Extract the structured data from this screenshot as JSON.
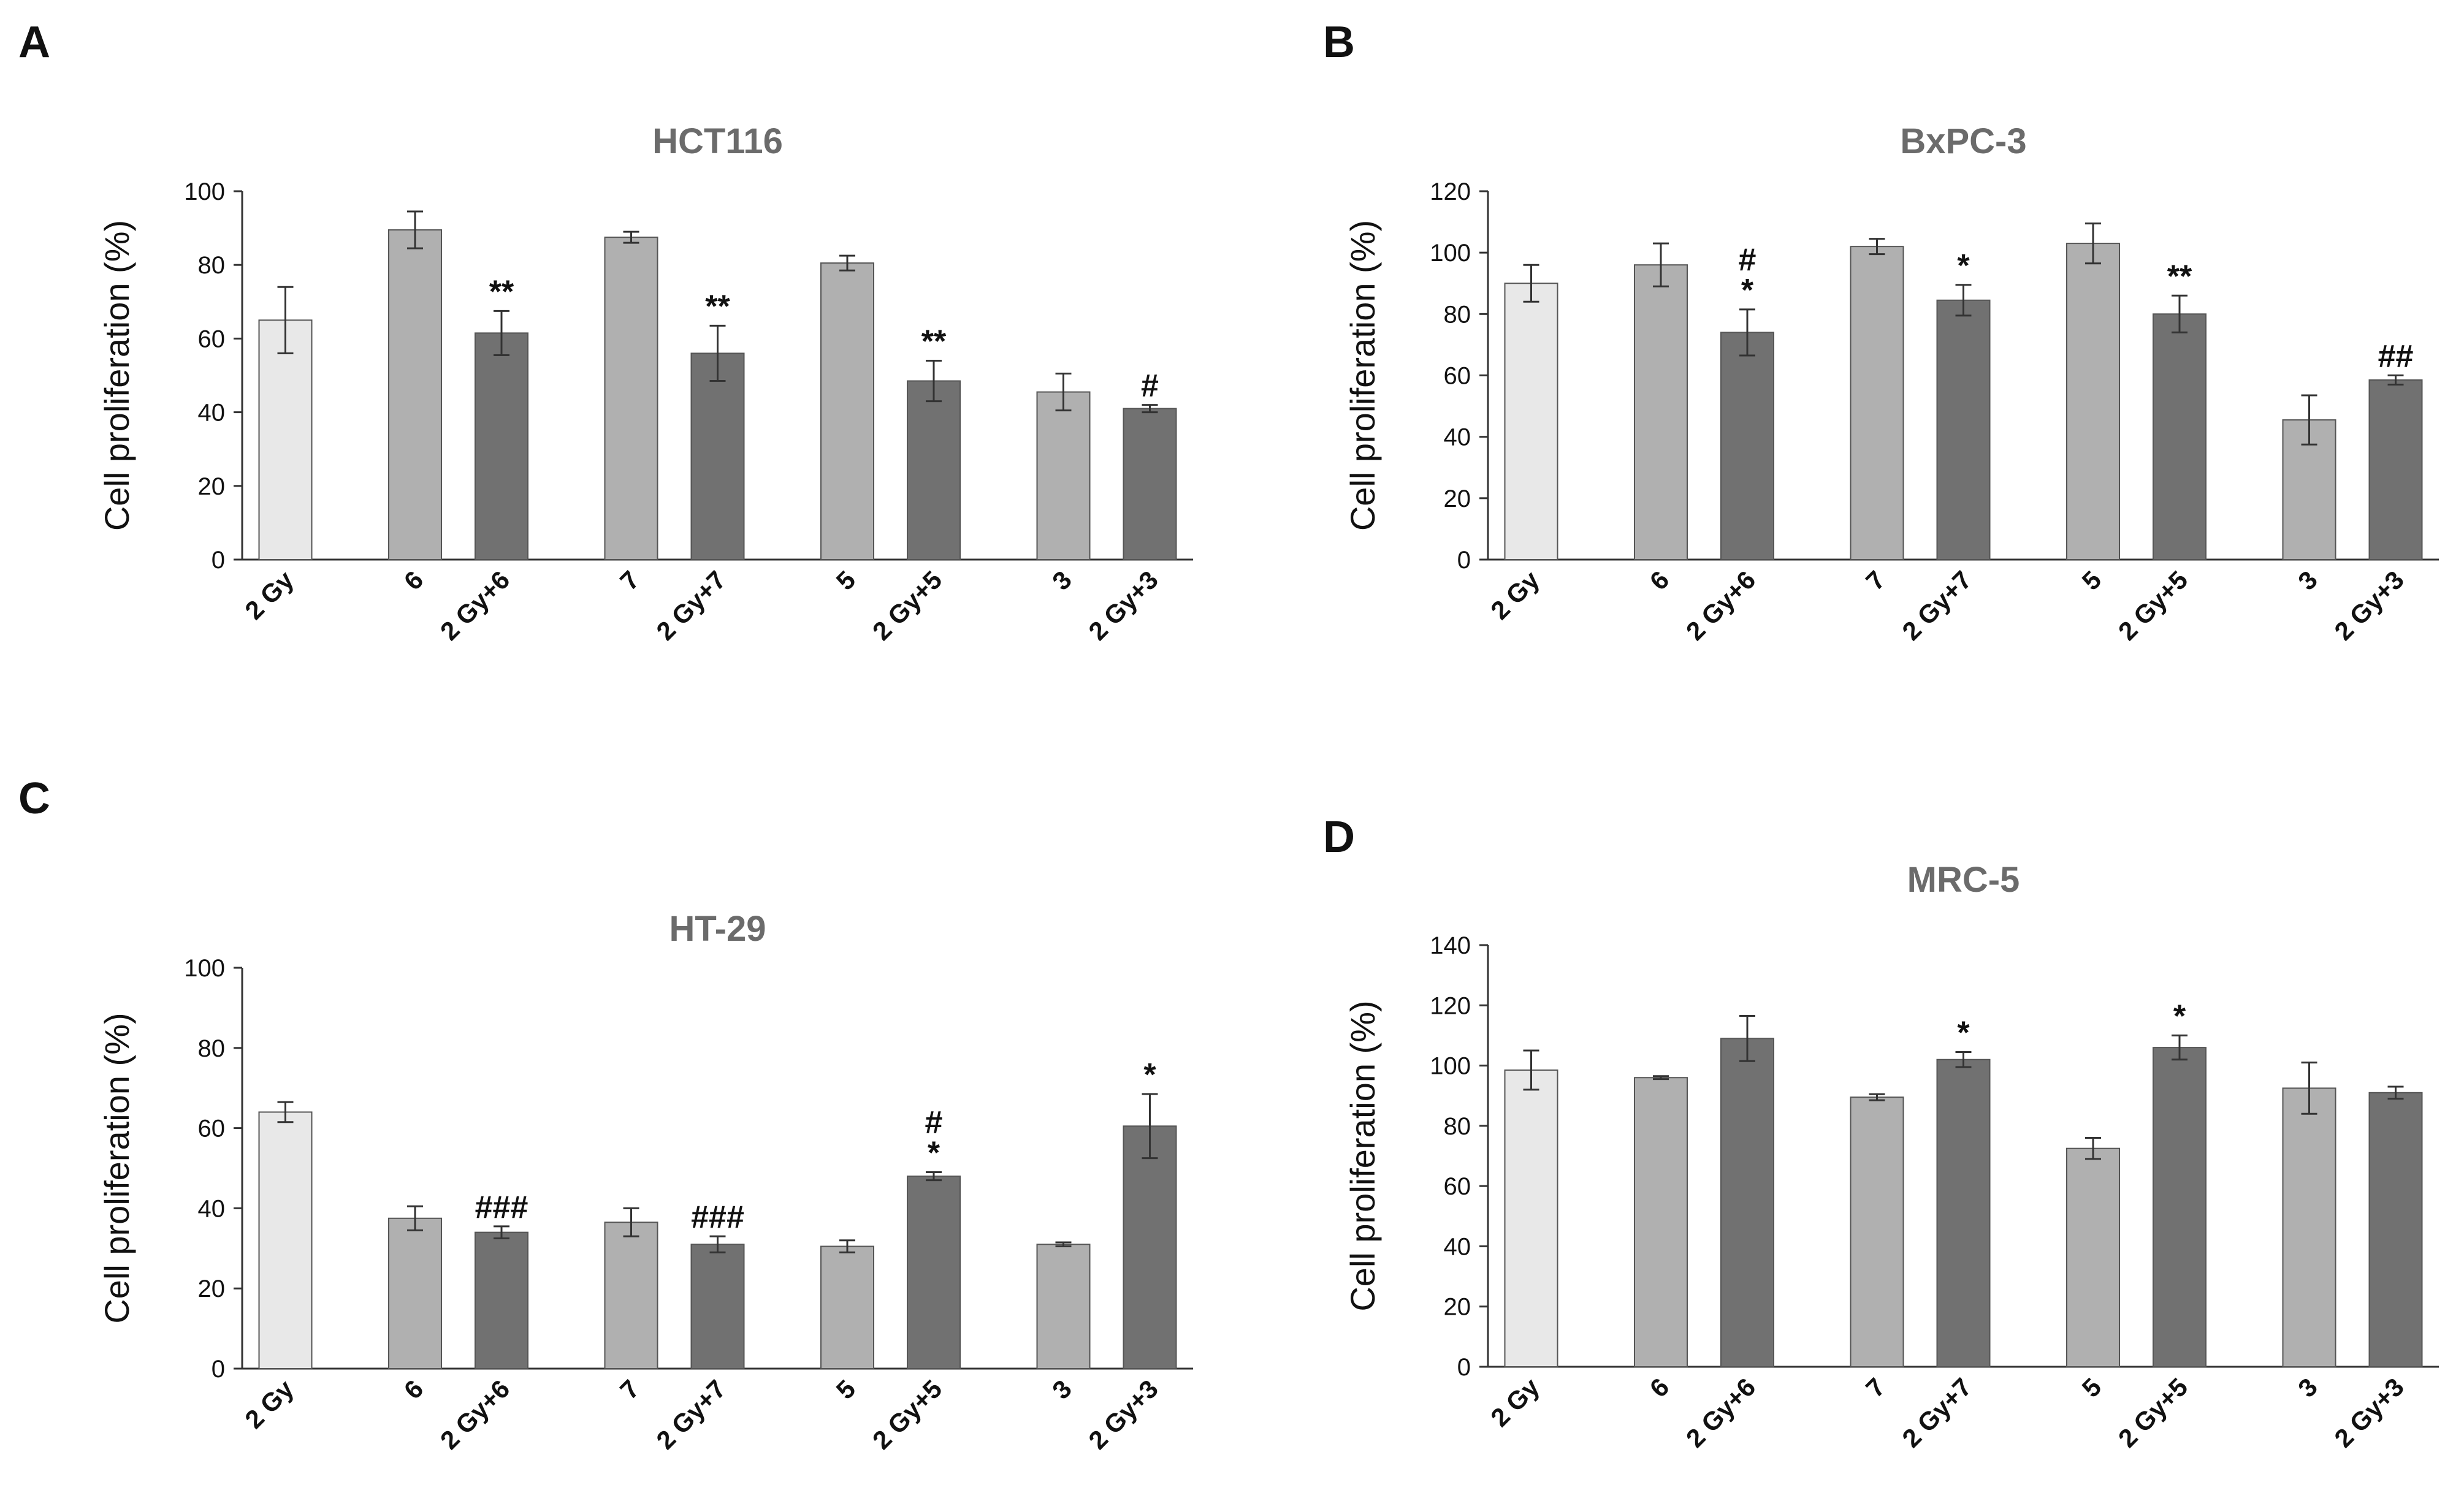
{
  "figure": {
    "panel_letters": [
      "A",
      "B",
      "C",
      "D"
    ]
  },
  "colors": {
    "control": "#e8e8e8",
    "compound": "#b0b0b0",
    "combination": "#717171",
    "bar_stroke": "#555555",
    "axis": "#333333",
    "title": "#6b6b6b",
    "text": "#111111"
  },
  "chart_data": [
    {
      "panel": "A",
      "type": "bar",
      "title": "HCT116",
      "ylabel": "Cell proliferation (%)",
      "xlabel": "",
      "ylim": [
        0,
        100
      ],
      "yticks": [
        0,
        20,
        40,
        60,
        80,
        100
      ],
      "categories": [
        "2 Gy",
        "6",
        "2 Gy+6",
        "7",
        "2 Gy+7",
        "5",
        "2 Gy+5",
        "3",
        "2 Gy+3"
      ],
      "groups": [
        "control",
        "compound",
        "combination",
        "compound",
        "combination",
        "compound",
        "combination",
        "compound",
        "combination"
      ],
      "values": [
        65,
        89.5,
        61.5,
        87.5,
        56,
        80.5,
        48.5,
        45.5,
        41
      ],
      "errors": [
        9,
        5,
        6,
        1.5,
        7.5,
        2,
        5.5,
        5,
        1
      ],
      "annotations": [
        "",
        "",
        "**",
        "",
        "**",
        "",
        "**",
        "",
        "#"
      ]
    },
    {
      "panel": "B",
      "type": "bar",
      "title": "BxPC-3",
      "ylabel": "Cell proliferation (%)",
      "xlabel": "",
      "ylim": [
        0,
        120
      ],
      "yticks": [
        0,
        20,
        40,
        60,
        80,
        100,
        120
      ],
      "categories": [
        "2 Gy",
        "6",
        "2 Gy+6",
        "7",
        "2 Gy+7",
        "5",
        "2 Gy+5",
        "3",
        "2 Gy+3"
      ],
      "groups": [
        "control",
        "compound",
        "combination",
        "compound",
        "combination",
        "compound",
        "combination",
        "compound",
        "combination"
      ],
      "values": [
        90,
        96,
        74,
        102,
        84.5,
        103,
        80,
        45.5,
        58.5
      ],
      "errors": [
        6,
        7,
        7.5,
        2.5,
        5,
        6.5,
        6,
        8,
        1.5
      ],
      "annotations": [
        "",
        "",
        "#\n*",
        "",
        "*",
        "",
        "**",
        "",
        "##"
      ]
    },
    {
      "panel": "C",
      "type": "bar",
      "title": "HT-29",
      "ylabel": "Cell proliferation (%)",
      "xlabel": "",
      "ylim": [
        0,
        100
      ],
      "yticks": [
        0,
        20,
        40,
        60,
        80,
        100
      ],
      "categories": [
        "2 Gy",
        "6",
        "2 Gy+6",
        "7",
        "2 Gy+7",
        "5",
        "2 Gy+5",
        "3",
        "2 Gy+3"
      ],
      "groups": [
        "control",
        "compound",
        "combination",
        "compound",
        "combination",
        "compound",
        "combination",
        "compound",
        "combination"
      ],
      "values": [
        64,
        37.5,
        34,
        36.5,
        31,
        30.5,
        48,
        31,
        60.5
      ],
      "errors": [
        2.5,
        3,
        1.5,
        3.5,
        2,
        1.5,
        1,
        0.5,
        8
      ],
      "annotations": [
        "",
        "",
        "###",
        "",
        "###",
        "",
        "#\n*",
        "",
        "*"
      ]
    },
    {
      "panel": "D",
      "type": "bar",
      "title": "MRC-5",
      "ylabel": "Cell proliferation (%)",
      "xlabel": "",
      "ylim": [
        0,
        140
      ],
      "yticks": [
        0,
        20,
        40,
        60,
        80,
        100,
        120,
        140
      ],
      "categories": [
        "2 Gy",
        "6",
        "2 Gy+6",
        "7",
        "2 Gy+7",
        "5",
        "2 Gy+5",
        "3",
        "2 Gy+3"
      ],
      "groups": [
        "control",
        "compound",
        "combination",
        "compound",
        "combination",
        "compound",
        "combination",
        "compound",
        "combination"
      ],
      "values": [
        98.5,
        96,
        109,
        89.5,
        102,
        72.5,
        106,
        92.5,
        91
      ],
      "errors": [
        6.5,
        0.5,
        7.5,
        1,
        2.5,
        3.5,
        4,
        8.5,
        2
      ],
      "annotations": [
        "",
        "",
        "",
        "",
        "*",
        "",
        "*",
        "",
        ""
      ]
    }
  ]
}
